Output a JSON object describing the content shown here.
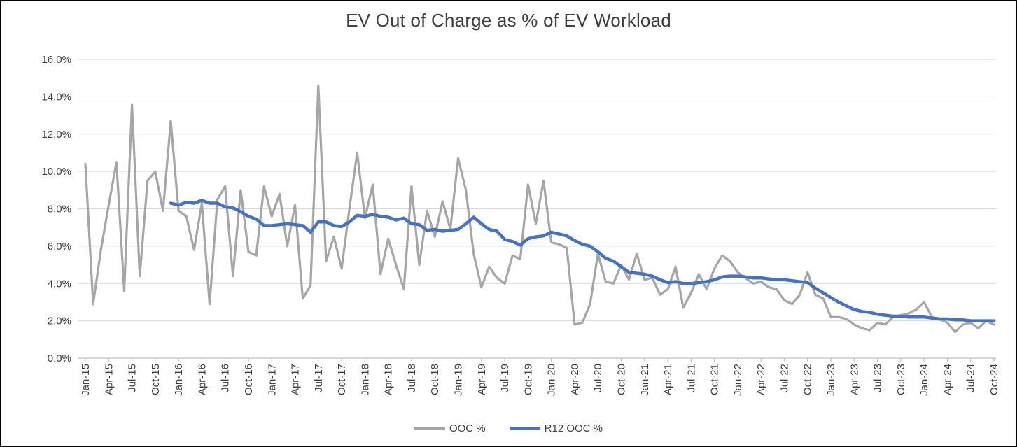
{
  "chart_data": {
    "type": "line",
    "title": "EV Out of Charge as % of EV Workload",
    "ylim": [
      0,
      16
    ],
    "ytick_step": 2,
    "y_tick_labels": [
      "0.0%",
      "2.0%",
      "4.0%",
      "6.0%",
      "8.0%",
      "10.0%",
      "12.0%",
      "14.0%",
      "16.0%"
    ],
    "grid": "horizontal",
    "legend_position": "bottom",
    "n_points": 118,
    "x_label_every_n_points": 3,
    "x_tick_labels": [
      "Jan-15",
      "Apr-15",
      "Jul-15",
      "Oct-15",
      "Jan-16",
      "Apr-16",
      "Jul-16",
      "Oct-16",
      "Jan-17",
      "Apr-17",
      "Jul-17",
      "Oct-17",
      "Jan-18",
      "Apr-18",
      "Jul-18",
      "Oct-18",
      "Jan-19",
      "Apr-19",
      "Jul-19",
      "Oct-19",
      "Jan-20",
      "Apr-20",
      "Jul-20",
      "Oct-20",
      "Jan-21",
      "Apr-21",
      "Jul-21",
      "Oct-21",
      "Jan-22",
      "Apr-22",
      "Jul-22",
      "Oct-22",
      "Jan-23",
      "Apr-23",
      "Jul-23",
      "Oct-23",
      "Jan-24",
      "Apr-24",
      "Jul-24",
      "Oct-24"
    ],
    "series": [
      {
        "name": "OOC %",
        "color": "#A6A6A6",
        "values": [
          10.4,
          2.9,
          5.8,
          8.2,
          10.5,
          3.6,
          13.6,
          4.4,
          9.5,
          10.0,
          7.9,
          12.7,
          7.9,
          7.6,
          5.8,
          8.3,
          2.9,
          8.5,
          9.2,
          4.4,
          9.0,
          5.7,
          5.5,
          9.2,
          7.6,
          8.8,
          6.0,
          8.2,
          3.2,
          3.9,
          14.6,
          5.2,
          6.5,
          4.8,
          8.0,
          11.0,
          7.5,
          9.3,
          4.5,
          6.4,
          5.0,
          3.7,
          9.2,
          5.0,
          7.9,
          6.5,
          8.4,
          6.9,
          10.7,
          9.0,
          5.6,
          3.8,
          4.9,
          4.3,
          4.0,
          5.5,
          5.3,
          9.3,
          7.2,
          9.5,
          6.2,
          6.1,
          5.9,
          1.8,
          1.9,
          2.9,
          5.6,
          4.1,
          4.0,
          5.0,
          4.2,
          5.6,
          4.2,
          4.3,
          3.4,
          3.7,
          4.9,
          2.7,
          3.5,
          4.5,
          3.7,
          4.8,
          5.5,
          5.2,
          4.6,
          4.3,
          4.0,
          4.1,
          3.8,
          3.7,
          3.1,
          2.9,
          3.4,
          4.6,
          3.4,
          3.2,
          2.2,
          2.2,
          2.1,
          1.8,
          1.6,
          1.5,
          1.9,
          1.8,
          2.2,
          2.3,
          2.4,
          2.6,
          3.0,
          2.2,
          2.1,
          1.9,
          1.4,
          1.8,
          1.9,
          1.6,
          2.0,
          1.8
        ]
      },
      {
        "name": "R12 OOC %",
        "color": "#4472C4",
        "values": [
          null,
          null,
          null,
          null,
          null,
          null,
          null,
          null,
          null,
          null,
          null,
          8.3,
          8.2,
          8.35,
          8.3,
          8.45,
          8.3,
          8.3,
          8.1,
          8.05,
          7.85,
          7.6,
          7.45,
          7.1,
          7.1,
          7.15,
          7.2,
          7.15,
          7.1,
          6.75,
          7.3,
          7.3,
          7.1,
          7.05,
          7.3,
          7.65,
          7.6,
          7.7,
          7.6,
          7.55,
          7.4,
          7.5,
          7.2,
          7.15,
          6.85,
          6.9,
          6.8,
          6.85,
          6.9,
          7.2,
          7.55,
          7.2,
          6.9,
          6.8,
          6.35,
          6.25,
          6.05,
          6.4,
          6.5,
          6.55,
          6.75,
          6.65,
          6.55,
          6.3,
          6.1,
          6.0,
          5.7,
          5.35,
          5.2,
          4.9,
          4.6,
          4.55,
          4.5,
          4.4,
          4.2,
          4.05,
          4.1,
          4.0,
          4.0,
          4.05,
          4.1,
          4.2,
          4.35,
          4.4,
          4.4,
          4.35,
          4.3,
          4.3,
          4.25,
          4.2,
          4.2,
          4.15,
          4.1,
          4.05,
          3.75,
          3.5,
          3.25,
          3.0,
          2.8,
          2.6,
          2.5,
          2.45,
          2.35,
          2.3,
          2.25,
          2.25,
          2.2,
          2.2,
          2.2,
          2.15,
          2.1,
          2.1,
          2.05,
          2.05,
          2.0,
          2.0,
          2.0,
          2.0
        ]
      }
    ],
    "colors": {
      "gridline": "#D9D9D9",
      "axis": "#BFBFBF",
      "text": "#404040"
    }
  }
}
